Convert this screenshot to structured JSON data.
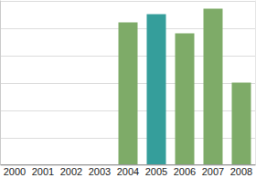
{
  "chart_data": {
    "type": "bar",
    "categories": [
      "2000",
      "2001",
      "2002",
      "2003",
      "2004",
      "2005",
      "2006",
      "2007",
      "2008"
    ],
    "values": [
      null,
      null,
      null,
      null,
      5.2,
      5.5,
      4.8,
      5.7,
      3.0
    ],
    "colors": [
      "#7eab68",
      "#7eab68",
      "#7eab68",
      "#7eab68",
      "#7eab68",
      "#359e9b",
      "#7eab68",
      "#7eab68",
      "#7eab68"
    ],
    "ylim": [
      0,
      6
    ],
    "yticks": [
      0,
      1,
      2,
      3,
      4,
      5,
      6
    ],
    "grid": true,
    "tick_labels": "x"
  }
}
